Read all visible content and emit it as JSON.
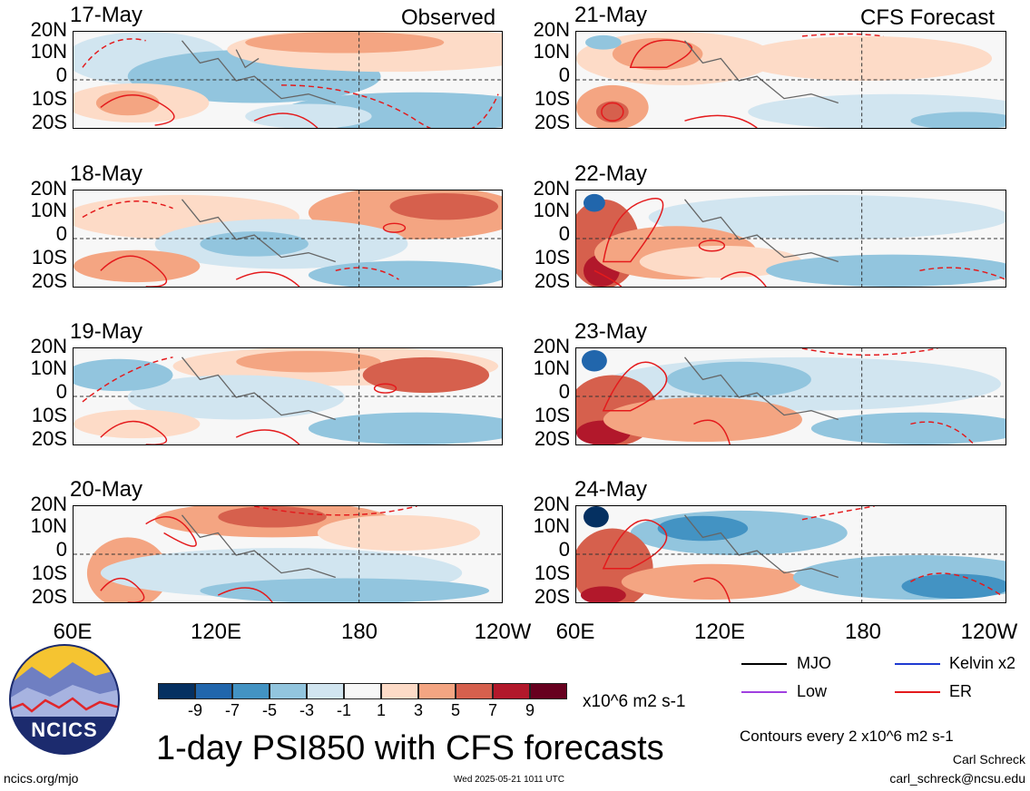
{
  "headers": {
    "observed": "Observed",
    "forecast": "CFS Forecast"
  },
  "lat_labels": [
    "20N",
    "10N",
    "0",
    "10S",
    "20S"
  ],
  "lon_labels": [
    "60E",
    "120E",
    "180",
    "120W"
  ],
  "panels": {
    "left": [
      "17-May",
      "18-May",
      "19-May",
      "20-May"
    ],
    "right": [
      "21-May",
      "22-May",
      "23-May",
      "24-May"
    ]
  },
  "colorbar": {
    "labels": [
      "-9",
      "-7",
      "-5",
      "-3",
      "-1",
      "1",
      "3",
      "5",
      "7",
      "9"
    ],
    "colors": [
      "#053061",
      "#2166ac",
      "#4393c3",
      "#92c5de",
      "#d1e5f0",
      "#f7f7f7",
      "#fddbc7",
      "#f4a582",
      "#d6604d",
      "#b2182b",
      "#67001f"
    ],
    "units": "x10^6 m2 s-1"
  },
  "title": "1-day PSI850 with CFS forecasts",
  "legend": {
    "items": [
      {
        "label": "MJO",
        "color": "#000000",
        "style": "solid"
      },
      {
        "label": "Kelvin x2",
        "color": "#1f3bd1",
        "style": "solid"
      },
      {
        "label": "Low",
        "color": "#a040e0",
        "style": "solid"
      },
      {
        "label": "ER",
        "color": "#e41a1c",
        "style": "solid"
      }
    ],
    "contour_note": "Contours every 2 x10^6 m2 s-1"
  },
  "logo": {
    "text": "NCICS"
  },
  "footer": {
    "left": "ncics.org/mjo",
    "center": "Wed 2025-05-21 1011 UTC",
    "author": "Carl Schreck",
    "email": "carl_schreck@ncsu.edu"
  }
}
